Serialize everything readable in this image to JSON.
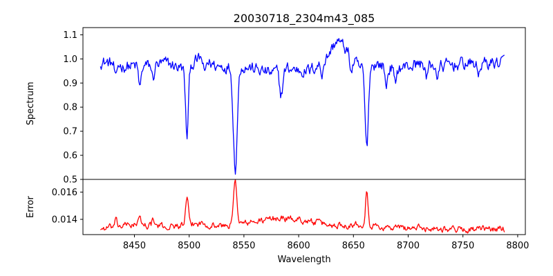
{
  "chart_data": {
    "type": "line",
    "title": "20030718_2304m43_085",
    "xlabel": "Wavelength",
    "xlim": [
      8403,
      8807
    ],
    "x_ticks": [
      8450,
      8500,
      8550,
      8600,
      8650,
      8700,
      8750,
      8800
    ],
    "x_range": [
      8419,
      8788
    ],
    "grid": false,
    "panels": [
      {
        "ylabel": "Spectrum",
        "ylim": [
          0.5,
          1.13
        ],
        "y_ticks": [
          0.5,
          0.6,
          0.7,
          0.8,
          0.9,
          1.0,
          1.1
        ],
        "y_tick_labels": [
          "0.5",
          "0.6",
          "0.7",
          "0.8",
          "0.9",
          "1.0",
          "1.1"
        ],
        "series": [
          {
            "color": "#0000ff",
            "baseline": [
              [
                8419,
                0.99
              ],
              [
                8440,
                0.97
              ],
              [
                8460,
                0.97
              ],
              [
                8480,
                0.98
              ],
              [
                8495,
                0.96
              ],
              [
                8510,
                1.0
              ],
              [
                8525,
                0.97
              ],
              [
                8550,
                0.97
              ],
              [
                8575,
                0.94
              ],
              [
                8590,
                0.96
              ],
              [
                8610,
                0.95
              ],
              [
                8625,
                1.0
              ],
              [
                8635,
                1.08
              ],
              [
                8645,
                1.03
              ],
              [
                8655,
                0.96
              ],
              [
                8670,
                0.98
              ],
              [
                8690,
                0.96
              ],
              [
                8710,
                0.98
              ],
              [
                8730,
                0.97
              ],
              [
                8750,
                0.98
              ],
              [
                8770,
                0.98
              ],
              [
                8788,
                0.99
              ]
            ],
            "features": [
              {
                "center": 8498.0,
                "depth": 0.29,
                "width": 1.3
              },
              {
                "center": 8542.1,
                "depth": 0.42,
                "width": 1.8
              },
              {
                "center": 8662.1,
                "depth": 0.34,
                "width": 1.5
              },
              {
                "center": 8455.0,
                "depth": 0.09,
                "width": 1.2
              },
              {
                "center": 8433.0,
                "depth": 0.07,
                "width": 1.0
              },
              {
                "center": 8467.0,
                "depth": 0.06,
                "width": 1.0
              },
              {
                "center": 8514.0,
                "depth": 0.06,
                "width": 1.0
              },
              {
                "center": 8584.0,
                "depth": 0.1,
                "width": 1.5
              },
              {
                "center": 8621.0,
                "depth": 0.05,
                "width": 1.0
              },
              {
                "center": 8648.0,
                "depth": 0.06,
                "width": 1.2
              },
              {
                "center": 8680.0,
                "depth": 0.08,
                "width": 1.2
              },
              {
                "center": 8688.0,
                "depth": 0.07,
                "width": 1.0
              },
              {
                "center": 8717.0,
                "depth": 0.06,
                "width": 1.0
              },
              {
                "center": 8727.0,
                "depth": 0.06,
                "width": 1.0
              },
              {
                "center": 8764.0,
                "depth": 0.05,
                "width": 1.0
              }
            ],
            "noise": 0.022
          }
        ]
      },
      {
        "ylabel": "Error",
        "ylim": [
          0.01288,
          0.01693
        ],
        "y_ticks": [
          0.014,
          0.016
        ],
        "y_tick_labels": [
          "0.014",
          "0.016"
        ],
        "series": [
          {
            "color": "#ff0000",
            "baseline": [
              [
                8419,
                0.0133
              ],
              [
                8450,
                0.01365
              ],
              [
                8480,
                0.01345
              ],
              [
                8510,
                0.0137
              ],
              [
                8530,
                0.0135
              ],
              [
                8560,
                0.0138
              ],
              [
                8580,
                0.0141
              ],
              [
                8600,
                0.014
              ],
              [
                8630,
                0.01355
              ],
              [
                8655,
                0.01365
              ],
              [
                8680,
                0.0134
              ],
              [
                8720,
                0.01335
              ],
              [
                8760,
                0.01325
              ],
              [
                8788,
                0.0133
              ]
            ],
            "features": [
              {
                "center": 8498.0,
                "depth": -0.0019,
                "width": 1.2
              },
              {
                "center": 8542.1,
                "depth": -0.0031,
                "width": 1.6
              },
              {
                "center": 8662.1,
                "depth": -0.0028,
                "width": 1.1
              },
              {
                "center": 8455.0,
                "depth": -0.0004,
                "width": 1.2
              },
              {
                "center": 8433.0,
                "depth": -0.0004,
                "width": 1.0
              },
              {
                "center": 8467.0,
                "depth": -0.0004,
                "width": 1.0
              }
            ],
            "noise": 0.0002
          }
        ]
      }
    ]
  }
}
